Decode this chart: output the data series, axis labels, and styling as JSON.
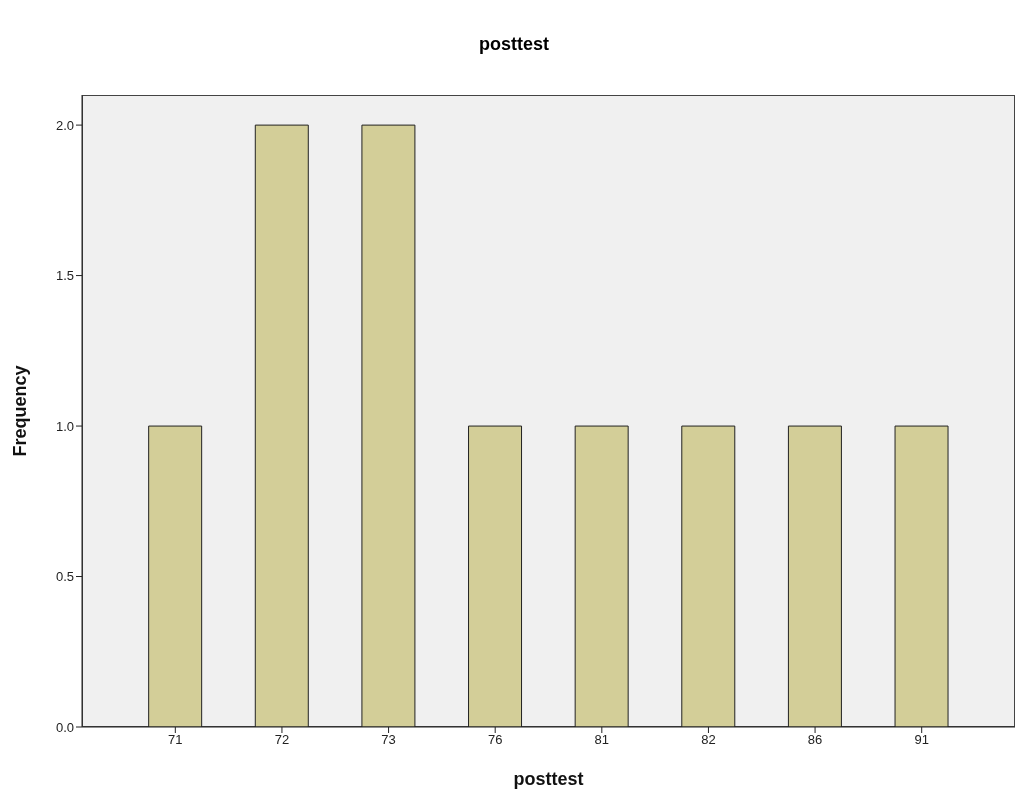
{
  "chart_data": {
    "type": "bar",
    "title": "posttest",
    "xlabel": "posttest",
    "ylabel": "Frequency",
    "categories": [
      "71",
      "72",
      "73",
      "76",
      "81",
      "82",
      "86",
      "91"
    ],
    "values": [
      1,
      2,
      2,
      1,
      1,
      1,
      1,
      1
    ],
    "color": "#d3ce98",
    "ylim": [
      0,
      2.1
    ],
    "yticks": [
      {
        "value": 0,
        "label": "0.0"
      },
      {
        "value": 0.5,
        "label": "0.5"
      },
      {
        "value": 1,
        "label": "1.0"
      },
      {
        "value": 1.5,
        "label": "1.5"
      },
      {
        "value": 2,
        "label": "2.0"
      }
    ],
    "grid": false,
    "legend": false
  }
}
